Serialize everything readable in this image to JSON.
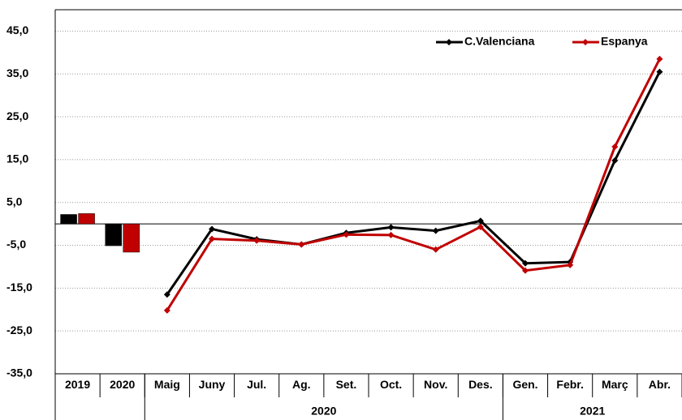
{
  "chart_data": {
    "type": "bar-line",
    "bar_categories": [
      "2019",
      "2020"
    ],
    "line_groups": [
      {
        "label": "2020",
        "categories": [
          "Maig",
          "Juny",
          "Jul.",
          "Ag.",
          "Set.",
          "Oct.",
          "Nov.",
          "Des."
        ]
      },
      {
        "label": "2021",
        "categories": [
          "Gen.",
          "Febr.",
          "Març",
          "Abr."
        ]
      }
    ],
    "series": [
      {
        "name": "C.Valenciana",
        "color": "#000000",
        "bar_values": [
          2.2,
          -5.1
        ],
        "line_values": [
          -16.5,
          -1.2,
          -3.6,
          -4.8,
          -2.1,
          -0.8,
          -1.6,
          0.7,
          -9.2,
          -8.9,
          14.8,
          35.5
        ]
      },
      {
        "name": "Espanya",
        "color": "#c00000",
        "bar_values": [
          2.4,
          -6.6
        ],
        "line_values": [
          -20.2,
          -3.5,
          -3.9,
          -4.8,
          -2.5,
          -2.6,
          -6.0,
          -0.7,
          -10.9,
          -9.6,
          18.0,
          38.5
        ]
      }
    ],
    "ylim": [
      -35,
      50
    ],
    "yticks": [
      {
        "value": -35,
        "label": "-35,0"
      },
      {
        "value": -25,
        "label": "-25,0"
      },
      {
        "value": -15,
        "label": "-15,0"
      },
      {
        "value": -5,
        "label": "-5,0"
      },
      {
        "value": 5,
        "label": "5,0"
      },
      {
        "value": 15,
        "label": "15,0"
      },
      {
        "value": 25,
        "label": "25,0"
      },
      {
        "value": 35,
        "label": "35,0"
      },
      {
        "value": 45,
        "label": "45,0"
      }
    ],
    "grid": true,
    "legend": "top-right"
  }
}
